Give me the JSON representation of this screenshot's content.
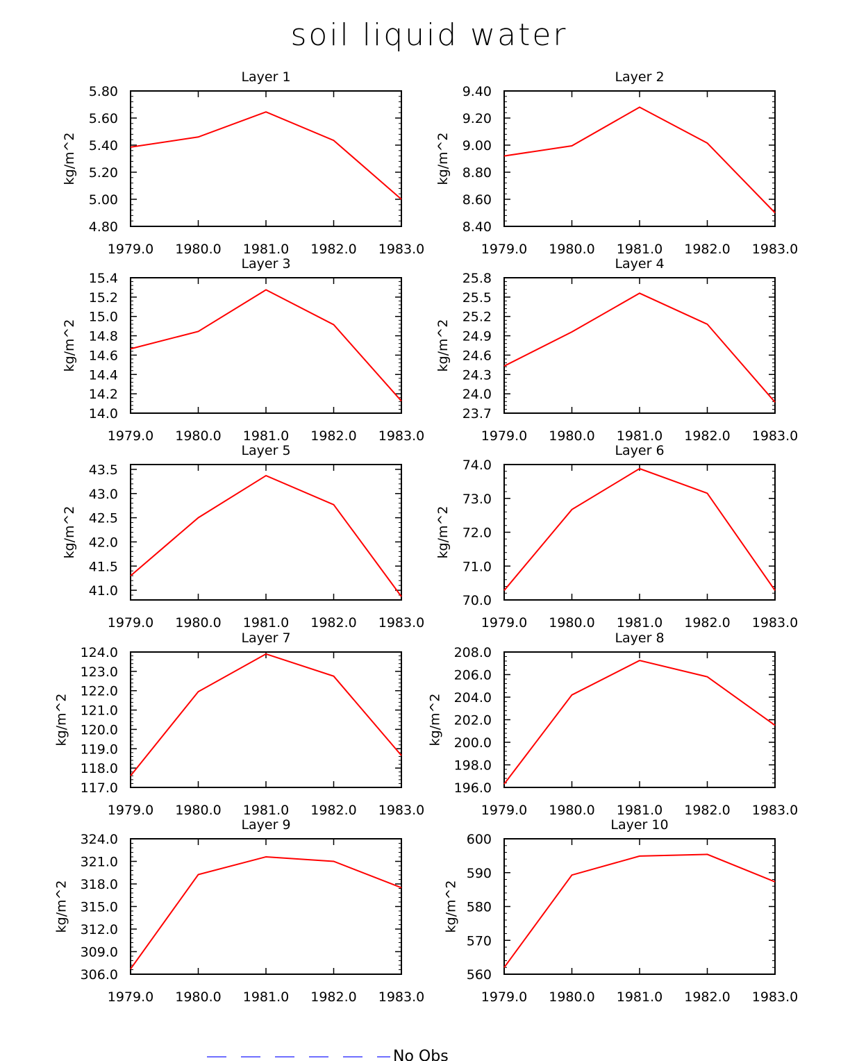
{
  "title": "soil liquid water",
  "legend": {
    "label": "No Obs",
    "color": "#6f6fff"
  },
  "series_color": "#ff0000",
  "chart_data": [
    {
      "type": "line",
      "title": "Layer 1",
      "ylabel": "kg/m^2",
      "xticks": [
        "1979.0",
        "1980.0",
        "1981.0",
        "1982.0",
        "1983.0"
      ],
      "yticks": [
        "4.80",
        "5.00",
        "5.20",
        "5.40",
        "5.60",
        "5.80"
      ],
      "ylim": [
        4.8,
        5.8
      ],
      "x": [
        1979,
        1980,
        1981,
        1982,
        1983
      ],
      "y": [
        5.385,
        5.46,
        5.645,
        5.435,
        5.0
      ]
    },
    {
      "type": "line",
      "title": "Layer 2",
      "ylabel": "kg/m^2",
      "xticks": [
        "1979.0",
        "1980.0",
        "1981.0",
        "1982.0",
        "1983.0"
      ],
      "yticks": [
        "8.40",
        "8.60",
        "8.80",
        "9.00",
        "9.20",
        "9.40"
      ],
      "ylim": [
        8.4,
        9.4
      ],
      "x": [
        1979,
        1980,
        1981,
        1982,
        1983
      ],
      "y": [
        8.92,
        8.995,
        9.28,
        9.015,
        8.5
      ]
    },
    {
      "type": "line",
      "title": "Layer 3",
      "ylabel": "kg/m^2",
      "xticks": [
        "1979.0",
        "1980.0",
        "1981.0",
        "1982.0",
        "1983.0"
      ],
      "yticks": [
        "14.0",
        "14.2",
        "14.4",
        "14.6",
        "14.8",
        "15.0",
        "15.2",
        "15.4"
      ],
      "ylim": [
        14.0,
        15.4
      ],
      "x": [
        1979,
        1980,
        1981,
        1982,
        1983
      ],
      "y": [
        14.665,
        14.845,
        15.275,
        14.915,
        14.125
      ]
    },
    {
      "type": "line",
      "title": "Layer 4",
      "ylabel": "kg/m^2",
      "xticks": [
        "1979.0",
        "1980.0",
        "1981.0",
        "1982.0",
        "1983.0"
      ],
      "yticks": [
        "23.7",
        "24.0",
        "24.3",
        "24.6",
        "24.9",
        "25.2",
        "25.5",
        "25.8"
      ],
      "ylim": [
        23.7,
        25.8
      ],
      "x": [
        1979,
        1980,
        1981,
        1982,
        1983
      ],
      "y": [
        24.43,
        24.96,
        25.56,
        25.08,
        23.87
      ]
    },
    {
      "type": "line",
      "title": "Layer 5",
      "ylabel": "kg/m^2",
      "xticks": [
        "1979.0",
        "1980.0",
        "1981.0",
        "1982.0",
        "1983.0"
      ],
      "yticks": [
        "41.0",
        "41.5",
        "42.0",
        "42.5",
        "43.0",
        "43.5"
      ],
      "ylim": [
        40.8,
        43.6
      ],
      "x": [
        1979,
        1980,
        1981,
        1982,
        1983
      ],
      "y": [
        41.3,
        42.5,
        43.37,
        42.77,
        40.87
      ]
    },
    {
      "type": "line",
      "title": "Layer 6",
      "ylabel": "kg/m^2",
      "xticks": [
        "1979.0",
        "1980.0",
        "1981.0",
        "1982.0",
        "1983.0"
      ],
      "yticks": [
        "70.0",
        "71.0",
        "72.0",
        "73.0",
        "74.0"
      ],
      "ylim": [
        70.0,
        74.0
      ],
      "x": [
        1979,
        1980,
        1981,
        1982,
        1983
      ],
      "y": [
        70.28,
        72.67,
        73.88,
        73.15,
        70.28
      ]
    },
    {
      "type": "line",
      "title": "Layer 7",
      "ylabel": "kg/m^2",
      "xticks": [
        "1979.0",
        "1980.0",
        "1981.0",
        "1982.0",
        "1983.0"
      ],
      "yticks": [
        "117.0",
        "118.0",
        "119.0",
        "120.0",
        "121.0",
        "122.0",
        "123.0",
        "124.0"
      ],
      "ylim": [
        117.0,
        124.0
      ],
      "x": [
        1979,
        1980,
        1981,
        1982,
        1983
      ],
      "y": [
        117.6,
        121.95,
        123.9,
        122.75,
        118.65
      ]
    },
    {
      "type": "line",
      "title": "Layer 8",
      "ylabel": "kg/m^2",
      "xticks": [
        "1979.0",
        "1980.0",
        "1981.0",
        "1982.0",
        "1983.0"
      ],
      "yticks": [
        "196.0",
        "198.0",
        "200.0",
        "202.0",
        "204.0",
        "206.0",
        "208.0"
      ],
      "ylim": [
        196.0,
        208.0
      ],
      "x": [
        1979,
        1980,
        1981,
        1982,
        1983
      ],
      "y": [
        196.3,
        204.2,
        207.25,
        205.8,
        201.5
      ]
    },
    {
      "type": "line",
      "title": "Layer 9",
      "ylabel": "kg/m^2",
      "xticks": [
        "1979.0",
        "1980.0",
        "1981.0",
        "1982.0",
        "1983.0"
      ],
      "yticks": [
        "306.0",
        "309.0",
        "312.0",
        "315.0",
        "318.0",
        "321.0",
        "324.0"
      ],
      "ylim": [
        306.0,
        324.0
      ],
      "x": [
        1979,
        1980,
        1981,
        1982,
        1983
      ],
      "y": [
        306.7,
        319.25,
        321.6,
        321.0,
        317.5
      ]
    },
    {
      "type": "line",
      "title": "Layer 10",
      "ylabel": "kg/m^2",
      "xticks": [
        "1979.0",
        "1980.0",
        "1981.0",
        "1982.0",
        "1983.0"
      ],
      "yticks": [
        "560",
        "570",
        "580",
        "590",
        "600"
      ],
      "ylim": [
        560,
        600
      ],
      "x": [
        1979,
        1980,
        1981,
        1982,
        1983
      ],
      "y": [
        562.0,
        589.3,
        594.9,
        595.4,
        587.3
      ]
    }
  ]
}
